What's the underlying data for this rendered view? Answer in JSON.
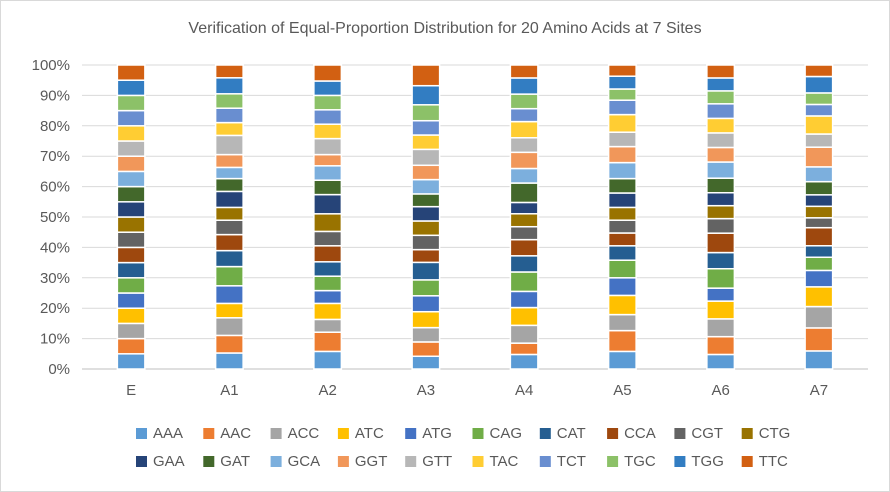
{
  "chart_data": {
    "type": "bar",
    "stacked": "percent",
    "title": "Verification of Equal-Proportion Distribution for 20 Amino Acids at 7 Sites",
    "xlabel": "",
    "ylabel": "",
    "ylim": [
      0,
      100
    ],
    "y_ticks": [
      "0%",
      "10%",
      "20%",
      "30%",
      "40%",
      "50%",
      "60%",
      "70%",
      "80%",
      "90%",
      "100%"
    ],
    "grid": true,
    "legend_position": "bottom",
    "categories": [
      "E",
      "A1",
      "A2",
      "A3",
      "A4",
      "A5",
      "A6",
      "A7"
    ],
    "series": [
      {
        "name": "AAA",
        "color": "#5B9BD5",
        "values": [
          5.0,
          5.0,
          5.5,
          4.0,
          4.5,
          5.5,
          4.5,
          5.5
        ]
      },
      {
        "name": "AAC",
        "color": "#ED7D31",
        "values": [
          5.0,
          5.5,
          6.0,
          4.5,
          3.5,
          6.5,
          5.5,
          7.0
        ]
      },
      {
        "name": "ACC",
        "color": "#A5A5A5",
        "values": [
          5.0,
          5.5,
          4.0,
          4.5,
          5.5,
          5.0,
          5.5,
          6.5
        ]
      },
      {
        "name": "ATC",
        "color": "#FFC000",
        "values": [
          5.0,
          4.5,
          5.0,
          5.0,
          5.5,
          6.0,
          5.5,
          6.0
        ]
      },
      {
        "name": "ATG",
        "color": "#4472C4",
        "values": [
          5.0,
          5.5,
          4.0,
          5.0,
          5.0,
          5.5,
          4.0,
          5.0
        ]
      },
      {
        "name": "CAG",
        "color": "#70AD47",
        "values": [
          5.0,
          6.0,
          4.5,
          5.0,
          6.0,
          5.5,
          6.0,
          4.0
        ]
      },
      {
        "name": "CAT",
        "color": "#255E91",
        "values": [
          5.0,
          5.0,
          4.5,
          5.5,
          5.0,
          4.5,
          5.0,
          3.5
        ]
      },
      {
        "name": "CCA",
        "color": "#9E480E",
        "values": [
          5.0,
          5.0,
          5.0,
          4.0,
          5.0,
          4.0,
          6.0,
          5.5
        ]
      },
      {
        "name": "CGT",
        "color": "#636363",
        "values": [
          5.0,
          4.5,
          4.5,
          4.5,
          4.0,
          4.0,
          4.5,
          3.0
        ]
      },
      {
        "name": "CTG",
        "color": "#997300",
        "values": [
          5.0,
          4.0,
          5.5,
          4.5,
          4.0,
          4.0,
          4.0,
          3.5
        ]
      },
      {
        "name": "GAA",
        "color": "#264478",
        "values": [
          5.0,
          5.0,
          6.0,
          4.5,
          3.5,
          4.5,
          4.0,
          3.5
        ]
      },
      {
        "name": "GAT",
        "color": "#43682B",
        "values": [
          5.0,
          4.0,
          4.5,
          4.0,
          6.0,
          4.5,
          4.5,
          4.0
        ]
      },
      {
        "name": "GCA",
        "color": "#7CAFDD",
        "values": [
          5.0,
          3.5,
          4.5,
          4.5,
          4.5,
          5.0,
          5.0,
          4.5
        ]
      },
      {
        "name": "GGT",
        "color": "#F1975A",
        "values": [
          5.0,
          4.0,
          3.5,
          4.5,
          5.0,
          5.0,
          4.5,
          6.0
        ]
      },
      {
        "name": "GTT",
        "color": "#B7B7B7",
        "values": [
          5.0,
          6.0,
          5.0,
          5.0,
          4.5,
          4.5,
          4.5,
          4.0
        ]
      },
      {
        "name": "TAC",
        "color": "#FFCD33",
        "values": [
          5.0,
          4.0,
          4.5,
          4.5,
          5.0,
          5.5,
          4.5,
          5.5
        ]
      },
      {
        "name": "TCT",
        "color": "#698ED0",
        "values": [
          5.0,
          4.5,
          4.5,
          4.5,
          4.0,
          4.5,
          4.5,
          3.5
        ]
      },
      {
        "name": "TGC",
        "color": "#8CC168",
        "values": [
          5.0,
          4.5,
          4.5,
          5.0,
          4.5,
          3.5,
          4.0,
          3.5
        ]
      },
      {
        "name": "TGG",
        "color": "#327DC2",
        "values": [
          5.0,
          5.0,
          4.5,
          6.0,
          5.0,
          4.0,
          4.0,
          5.0
        ]
      },
      {
        "name": "TTC",
        "color": "#D26012",
        "values": [
          5.0,
          4.0,
          5.0,
          6.5,
          4.0,
          3.5,
          4.0,
          3.5
        ]
      }
    ]
  }
}
